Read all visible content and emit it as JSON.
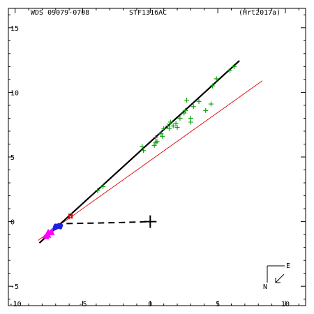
{
  "header": {
    "left": "WDS 09079-0708",
    "center": "STF1316AC",
    "right": "(Hrt2017a)"
  },
  "orientation": {
    "east": "E",
    "north": "N"
  },
  "colors": {
    "fit_orbit": "#000000",
    "alt_orbit": "#e00000",
    "obs_green": "#00a000",
    "obs_blue": "#2020e0",
    "obs_magenta": "#ff00ff",
    "obs_red": "#e00000",
    "primary": "#000000"
  },
  "chart_data": {
    "type": "scatter",
    "title": "",
    "xlabel": "",
    "ylabel": "",
    "xlim": [
      -10.5,
      11.5
    ],
    "ylim": [
      -6.5,
      16.5
    ],
    "x_ticks": [
      -10,
      -5,
      0,
      5,
      10
    ],
    "y_ticks": [
      15,
      10,
      5,
      0,
      -5
    ],
    "x_tick_labels": [
      "-10",
      "-5",
      "0",
      "5",
      "10"
    ],
    "y_tick_labels": [
      "15",
      "10",
      "5",
      "0",
      "-5"
    ],
    "primary_star": [
      0,
      0
    ],
    "series": [
      {
        "kind": "line",
        "style": "solid-thick",
        "color": "#000000",
        "points": [
          [
            -8.2,
            -1.65
          ],
          [
            6.6,
            12.45
          ]
        ]
      },
      {
        "kind": "line",
        "style": "solid-thin",
        "color": "#e00000",
        "points": [
          [
            -8.3,
            -1.45
          ],
          [
            8.3,
            10.9
          ]
        ]
      },
      {
        "kind": "line",
        "style": "dashed",
        "color": "#000000",
        "points": [
          [
            -6.2,
            -0.15
          ],
          [
            -2.5,
            -0.08
          ],
          [
            0,
            0
          ]
        ]
      },
      {
        "kind": "points",
        "marker": "plus",
        "color": "#00a000",
        "points": [
          [
            6.2,
            12.0
          ],
          [
            5.9,
            11.7
          ],
          [
            4.9,
            11.05
          ],
          [
            4.6,
            10.5
          ],
          [
            4.5,
            9.1
          ],
          [
            4.1,
            8.6
          ],
          [
            3.6,
            9.3
          ],
          [
            3.2,
            8.9
          ],
          [
            3.0,
            8.0
          ],
          [
            3.0,
            7.7
          ],
          [
            2.7,
            9.4
          ],
          [
            2.6,
            8.6
          ],
          [
            2.5,
            8.4
          ],
          [
            2.2,
            8.0
          ],
          [
            2.0,
            7.3
          ],
          [
            1.9,
            7.6
          ],
          [
            1.7,
            7.4
          ],
          [
            1.5,
            7.7
          ],
          [
            1.4,
            7.2
          ],
          [
            1.3,
            7.4
          ],
          [
            1.0,
            7.2
          ],
          [
            0.9,
            6.6
          ],
          [
            0.8,
            6.8
          ],
          [
            0.5,
            6.2
          ],
          [
            0.4,
            6.5
          ],
          [
            0.4,
            6.1
          ],
          [
            0.3,
            5.9
          ],
          [
            -0.5,
            5.5
          ],
          [
            -0.6,
            5.8
          ],
          [
            -3.5,
            2.7
          ],
          [
            -3.9,
            2.4
          ]
        ]
      },
      {
        "kind": "points",
        "marker": "dot",
        "color": "#2020e0",
        "points": [
          [
            -6.6,
            -0.3
          ],
          [
            -6.7,
            -0.35
          ],
          [
            -6.8,
            -0.4
          ],
          [
            -6.9,
            -0.45
          ],
          [
            -7.0,
            -0.5
          ],
          [
            -6.75,
            -0.25
          ],
          [
            -6.85,
            -0.3
          ],
          [
            -6.95,
            -0.35
          ],
          [
            -7.05,
            -0.4
          ],
          [
            -7.1,
            -0.55
          ],
          [
            -6.65,
            -0.45
          ],
          [
            -7.0,
            -0.3
          ]
        ]
      },
      {
        "kind": "points",
        "marker": "tri",
        "color": "#ff00ff",
        "points": [
          [
            -7.3,
            -0.7
          ],
          [
            -7.4,
            -0.8
          ],
          [
            -7.6,
            -0.95
          ],
          [
            -7.7,
            -1.05
          ],
          [
            -7.5,
            -1.1
          ],
          [
            -7.8,
            -1.15
          ],
          [
            -7.25,
            -0.9
          ],
          [
            -7.55,
            -0.75
          ],
          [
            -7.65,
            -1.2
          ]
        ]
      },
      {
        "kind": "points",
        "marker": "bar",
        "color": "#e00000",
        "points": [
          [
            -6.0,
            0.4
          ],
          [
            -5.8,
            0.45
          ]
        ]
      }
    ]
  }
}
